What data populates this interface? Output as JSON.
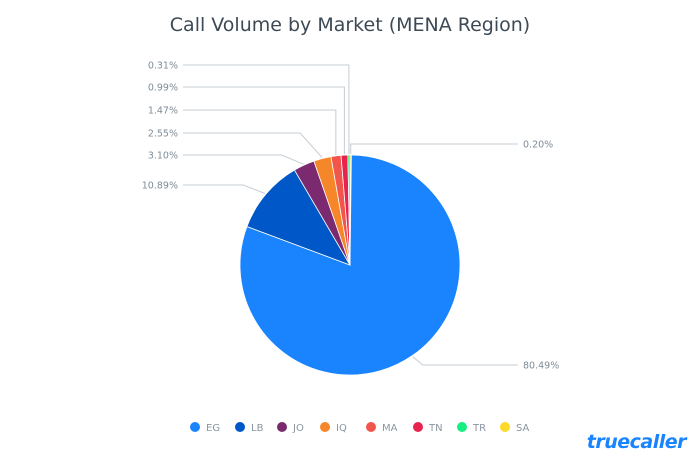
{
  "chart_data": {
    "type": "pie",
    "title": "Call Volume by Market (MENA Region)",
    "start": "top, clockwise",
    "slices": [
      {
        "name": "SA",
        "value": 0.2,
        "label": "0.20%",
        "color": "#fcd92a"
      },
      {
        "name": "EG",
        "value": 80.49,
        "label": "80.49%",
        "color": "#1a84ff"
      },
      {
        "name": "LB",
        "value": 10.89,
        "label": "10.89%",
        "color": "#0057c7"
      },
      {
        "name": "JO",
        "value": 3.1,
        "label": "3.10%",
        "color": "#7b2a70"
      },
      {
        "name": "IQ",
        "value": 2.55,
        "label": "2.55%",
        "color": "#f5862a"
      },
      {
        "name": "MA",
        "value": 1.47,
        "label": "1.47%",
        "color": "#f2554c"
      },
      {
        "name": "TN",
        "value": 0.99,
        "label": "0.99%",
        "color": "#e8234f"
      },
      {
        "name": "TR",
        "value": 0.31,
        "label": "0.31%",
        "color": "#15ee80"
      }
    ],
    "legend": [
      "EG",
      "LB",
      "JO",
      "IQ",
      "MA",
      "TN",
      "TR",
      "SA"
    ],
    "legend_placement": "bottom"
  },
  "brand": {
    "logo": "truecaller",
    "color": "#1a84ff"
  }
}
